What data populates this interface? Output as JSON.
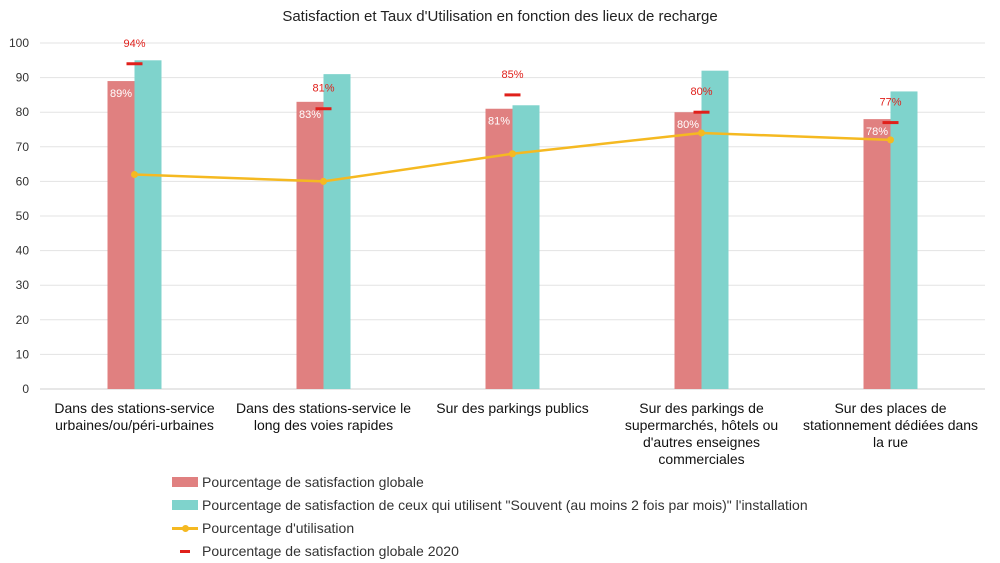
{
  "chart_data": {
    "type": "bar",
    "title": "Satisfaction et Taux d'Utilisation en fonction des lieux de recharge",
    "categories": [
      [
        "Dans des stations-service",
        "urbaines/ou/péri-urbaines"
      ],
      [
        "Dans des stations-service le",
        "long des voies rapides"
      ],
      [
        "Sur des parkings publics"
      ],
      [
        "Sur des parkings de",
        "supermarchés, hôtels ou",
        "d'autres enseignes",
        "commerciales"
      ],
      [
        "Sur des places de",
        "stationnement dédiées dans",
        "la rue"
      ]
    ],
    "ylim": [
      0,
      100
    ],
    "yticks": [
      0,
      10,
      20,
      30,
      40,
      50,
      60,
      70,
      80,
      90,
      100
    ],
    "grid": true,
    "legend_position": "bottom",
    "series": [
      {
        "name": "Pourcentage de satisfaction globale",
        "kind": "bar",
        "color": "#e08080",
        "values": [
          89,
          83,
          81,
          80,
          78
        ],
        "labels": [
          "89%",
          "83%",
          "81%",
          "80%",
          "78%"
        ]
      },
      {
        "name": "Pourcentage de satisfaction de ceux qui utilisent \"Souvent (au moins 2 fois par mois)\" l'installation",
        "kind": "bar",
        "color": "#7fd3cc",
        "values": [
          95,
          91,
          82,
          92,
          86
        ]
      },
      {
        "name": "Pourcentage d'utilisation",
        "kind": "line",
        "color": "#f5b921",
        "values": [
          62,
          60,
          68,
          74,
          72
        ]
      },
      {
        "name": "Pourcentage de satisfaction globale 2020",
        "kind": "marker",
        "color": "#e0201b",
        "values": [
          94,
          81,
          85,
          80,
          77
        ],
        "labels": [
          "94%",
          "81%",
          "85%",
          "80%",
          "77%"
        ]
      }
    ]
  }
}
